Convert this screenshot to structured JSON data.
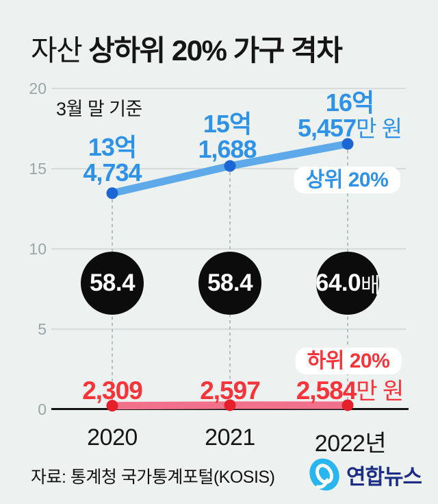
{
  "title": {
    "light": "자산",
    "bold": "상하위 20% 가구 격차"
  },
  "subtitle": "3월 말 기준",
  "source": "자료: 통계청 국가통계포털(KOSIS)",
  "logo": {
    "text": "연합뉴스"
  },
  "colors": {
    "background": "#edf1ef",
    "grid": "#c7d0cf",
    "axis": "#141414",
    "dashed_guide": "#9cafb4",
    "top_line": "#5ea9e9",
    "top_dot": "#1b66d4",
    "top_label": "#2e92e9",
    "bottom_line": "#f2718a",
    "bottom_dot": "#e5202a",
    "bottom_label": "#f8333a",
    "ratio_bubble": "#0c0c0c",
    "logo_navy": "#1b2d86",
    "logo_blue": "#29b5ef"
  },
  "chart_data": {
    "type": "line",
    "x": [
      "2020",
      "2021",
      "2022년"
    ],
    "yaxis": {
      "ticks": [
        "20",
        "15",
        "10",
        "5",
        "0"
      ],
      "min": 0,
      "max": 20,
      "grid": true,
      "unit_eok": true
    },
    "series": [
      {
        "name": "상위 20%",
        "unit": "만 원",
        "values": [
          134734,
          151688,
          165457
        ],
        "point_labels": [
          {
            "line1": "13억",
            "line2": "4,734",
            "suffix": ""
          },
          {
            "line1": "15억",
            "line2": "1,688",
            "suffix": ""
          },
          {
            "line1": "16억",
            "line2": "5,457",
            "suffix": "만 원"
          }
        ]
      },
      {
        "name": "하위 20%",
        "unit": "만 원",
        "values": [
          2309,
          2597,
          2584
        ],
        "point_labels": [
          {
            "value": "2,309",
            "suffix": ""
          },
          {
            "value": "2,597",
            "suffix": ""
          },
          {
            "value": "2,584",
            "suffix": "만 원"
          }
        ]
      }
    ],
    "ratio": [
      {
        "value": "58.4",
        "suffix": ""
      },
      {
        "value": "58.4",
        "suffix": ""
      },
      {
        "value": "64.0",
        "suffix": "배"
      }
    ]
  }
}
